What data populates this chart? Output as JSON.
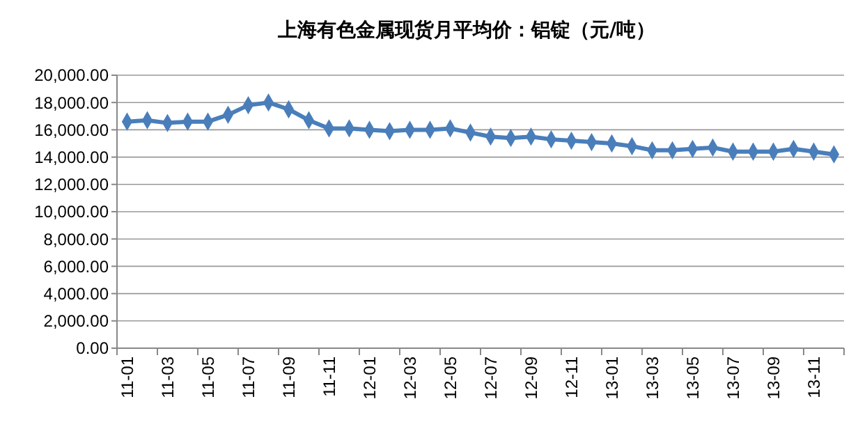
{
  "chart_data": {
    "type": "line",
    "title": "上海有色金属现货月平均价：铝锭（元/吨）",
    "categories": [
      "11-01",
      null,
      "11-03",
      null,
      "11-05",
      null,
      "11-07",
      null,
      "11-09",
      null,
      "11-11",
      null,
      "12-01",
      null,
      "12-03",
      null,
      "12-05",
      null,
      "12-07",
      null,
      "12-09",
      null,
      "12-11",
      null,
      "13-01",
      null,
      "13-03",
      null,
      "13-05",
      null,
      "13-07",
      null,
      "13-09",
      null,
      "13-11",
      null
    ],
    "series": [
      {
        "color": "#4a7ebb",
        "values": [
          16600,
          16700,
          16500,
          16600,
          16600,
          17100,
          17800,
          18000,
          17500,
          16700,
          16100,
          16100,
          16000,
          15900,
          16000,
          16000,
          16100,
          15800,
          15500,
          15400,
          15500,
          15300,
          15200,
          15100,
          15000,
          14800,
          14500,
          14500,
          14600,
          14700,
          14400,
          14400,
          14400,
          14600,
          14400,
          14200
        ]
      }
    ],
    "ylim": [
      0,
      20000
    ],
    "yticks": [
      {
        "value": 0,
        "label": "0.00"
      },
      {
        "value": 2000,
        "label": "2,000.00"
      },
      {
        "value": 4000,
        "label": "4,000.00"
      },
      {
        "value": 6000,
        "label": "6,000.00"
      },
      {
        "value": 8000,
        "label": "8,000.00"
      },
      {
        "value": 10000,
        "label": "10,000.00"
      },
      {
        "value": 12000,
        "label": "12,000.00"
      },
      {
        "value": 14000,
        "label": "14,000.00"
      },
      {
        "value": 16000,
        "label": "16,000.00"
      },
      {
        "value": 18000,
        "label": "18,000.00"
      },
      {
        "value": 20000,
        "label": "20,000.00"
      }
    ],
    "grid": "y",
    "marker": "diamond",
    "line_style": "solid"
  }
}
